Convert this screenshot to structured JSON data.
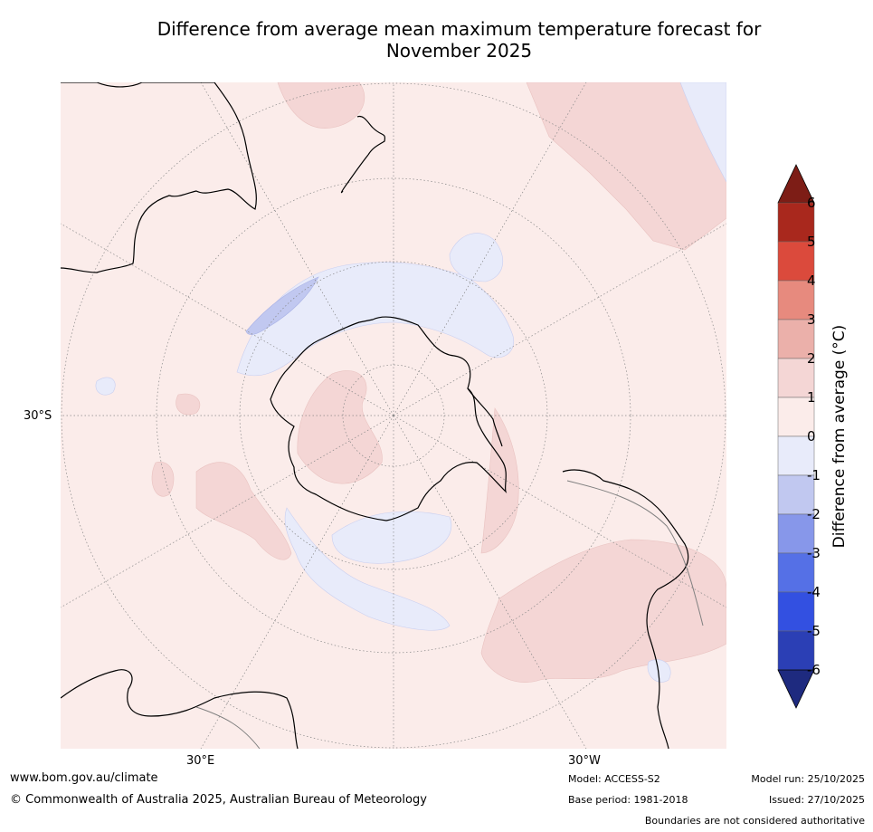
{
  "title": {
    "line1": "Difference from average mean maximum temperature forecast for",
    "line2": "November 2025"
  },
  "map": {
    "projection": "south polar stereographic",
    "grid_labels": {
      "lat_left": "30°S",
      "lon_bottom_left": "30°E",
      "lon_bottom_right": "30°W"
    },
    "colors": {
      "ocean_base": "#fbecea",
      "warm_1_2": "#f4d6d5",
      "warm_2_3": "#ebb0aa",
      "cool_0_m1": "#e8ebfa",
      "cool_m1_m2": "#c1c8f0",
      "coast": "#000000",
      "border": "#808080",
      "grid": "#888888"
    }
  },
  "colorbar": {
    "label": "Difference from average (°C)",
    "ticks": [
      "6",
      "5",
      "4",
      "3",
      "2",
      "1",
      "0",
      "-1",
      "-2",
      "-3",
      "-4",
      "-5",
      "-6"
    ],
    "bands": [
      "#a9281d",
      "#db4a3c",
      "#e78a7e",
      "#ebb0aa",
      "#f4d6d5",
      "#fbecea",
      "#e8ebfa",
      "#c1c8f0",
      "#8797ea",
      "#5570e6",
      "#3350e1",
      "#2b3fb5"
    ],
    "top_extend": "#7d1d16",
    "bottom_extend": "#1e2a7f"
  },
  "footer": {
    "url": "www.bom.gov.au/climate",
    "copyright": "© Commonwealth of Australia 2025, Australian Bureau of Meteorology",
    "model": "Model: ACCESS-S2",
    "base_period": "Base period: 1981-2018",
    "model_run": "Model run: 25/10/2025",
    "issued": "Issued: 27/10/2025",
    "disclaimer": "Boundaries are not considered authoritative"
  }
}
